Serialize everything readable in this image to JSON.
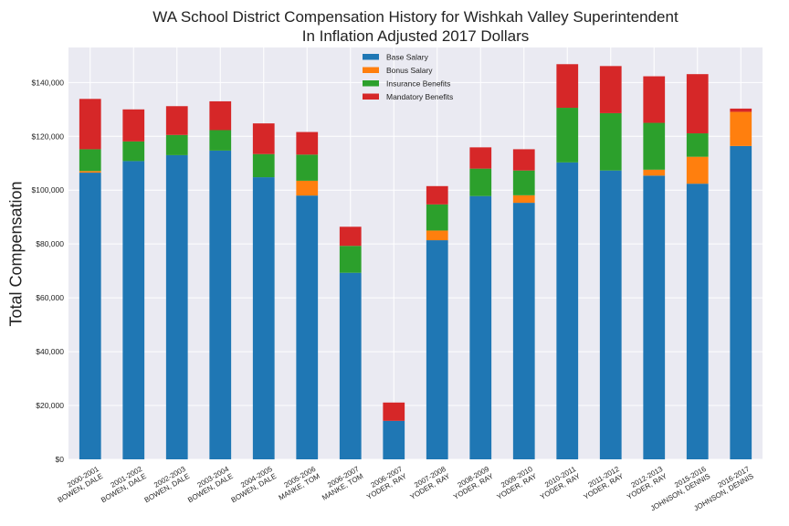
{
  "chart_data": {
    "type": "bar",
    "stacked": true,
    "title": "WA School District Compensation History for Wishkah Valley Superintendent",
    "subtitle": "In Inflation Adjusted 2017 Dollars",
    "xlabel": "",
    "ylabel": "Total Compensation",
    "ylim": [
      0,
      153000
    ],
    "yticks": [
      0,
      20000,
      40000,
      60000,
      80000,
      100000,
      120000,
      140000
    ],
    "ytick_labels": [
      "$0",
      "$20,000",
      "$40,000",
      "$60,000",
      "$80,000",
      "$100,000",
      "$120,000",
      "$140,000"
    ],
    "grid": true,
    "legend_position": "top-center",
    "categories": [
      [
        "2000-2001",
        "BOWEN, DALE"
      ],
      [
        "2001-2002",
        "BOWEN, DALE"
      ],
      [
        "2002-2003",
        "BOWEN, DALE"
      ],
      [
        "2003-2004",
        "BOWEN, DALE"
      ],
      [
        "2004-2005",
        "BOWEN, DALE"
      ],
      [
        "2005-2006",
        "MANKE, TOM"
      ],
      [
        "2006-2007",
        "MANKE, TOM"
      ],
      [
        "2006-2007",
        "YODER, RAY"
      ],
      [
        "2007-2008",
        "YODER, RAY"
      ],
      [
        "2008-2009",
        "YODER, RAY"
      ],
      [
        "2009-2010",
        "YODER, RAY"
      ],
      [
        "2010-2011",
        "YODER, RAY"
      ],
      [
        "2011-2012",
        "YODER, RAY"
      ],
      [
        "2012-2013",
        "YODER, RAY"
      ],
      [
        "2015-2016",
        "JOHNSON, DENNIS"
      ],
      [
        "2016-2017",
        "JOHNSON, DENNIS"
      ]
    ],
    "series": [
      {
        "name": "Base Salary",
        "color": "#1f77b4",
        "values": [
          106500,
          110800,
          113000,
          114700,
          104800,
          98000,
          69300,
          14300,
          81400,
          97800,
          95300,
          110300,
          107300,
          105400,
          102400,
          116400
        ]
      },
      {
        "name": "Bonus Salary",
        "color": "#ff7f0e",
        "values": [
          600,
          0,
          0,
          0,
          0,
          5500,
          0,
          0,
          3600,
          0,
          2800,
          0,
          0,
          2200,
          10000,
          12700
        ]
      },
      {
        "name": "Insurance Benefits",
        "color": "#2ca02c",
        "values": [
          8100,
          7300,
          7500,
          7600,
          8600,
          9700,
          10000,
          0,
          9700,
          10200,
          9200,
          20300,
          21300,
          17400,
          8700,
          0
        ]
      },
      {
        "name": "Mandatory Benefits",
        "color": "#d62728",
        "values": [
          18700,
          11900,
          10700,
          10700,
          11400,
          8400,
          7100,
          6800,
          6800,
          7900,
          7900,
          16200,
          17500,
          17300,
          22000,
          1200
        ]
      }
    ]
  }
}
